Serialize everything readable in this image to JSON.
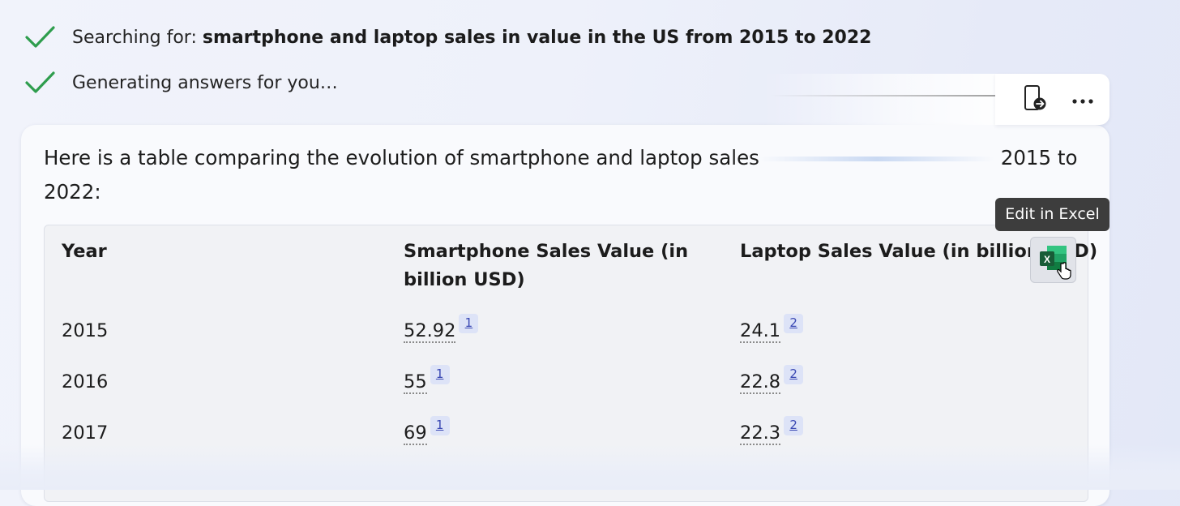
{
  "status": [
    {
      "label": "Searching for: ",
      "query": "smartphone and laptop sales in value in the US from 2015 to 2022"
    },
    {
      "label": "Generating answers for you…",
      "query": ""
    }
  ],
  "answer": {
    "intro_start": "Here is a table comparing the evolution of smartphone and laptop sales",
    "intro_end": "2015 to 2022:"
  },
  "table": {
    "headers": [
      "Year",
      "Smartphone Sales Value (in billion USD)",
      "Laptop Sales Value (in billion USD)"
    ],
    "rows": [
      {
        "year": "2015",
        "smartphone": "52.92",
        "smartphone_cite": "1",
        "laptop": "24.1",
        "laptop_cite": "2"
      },
      {
        "year": "2016",
        "smartphone": "55",
        "smartphone_cite": "1",
        "laptop": "22.8",
        "laptop_cite": "2"
      },
      {
        "year": "2017",
        "smartphone": "69",
        "smartphone_cite": "1",
        "laptop": "22.3",
        "laptop_cite": "2"
      }
    ]
  },
  "toolbar": {
    "export_icon": "mobile-export-icon",
    "more_icon": "more-horizontal-icon"
  },
  "tooltip": {
    "text": "Edit in Excel"
  },
  "excel_button": {
    "icon": "excel-icon",
    "badge": "X"
  },
  "colors": {
    "check": "#2e9d4d",
    "excel_green": "#1f7a45",
    "cite_bg": "#dde3f7"
  }
}
